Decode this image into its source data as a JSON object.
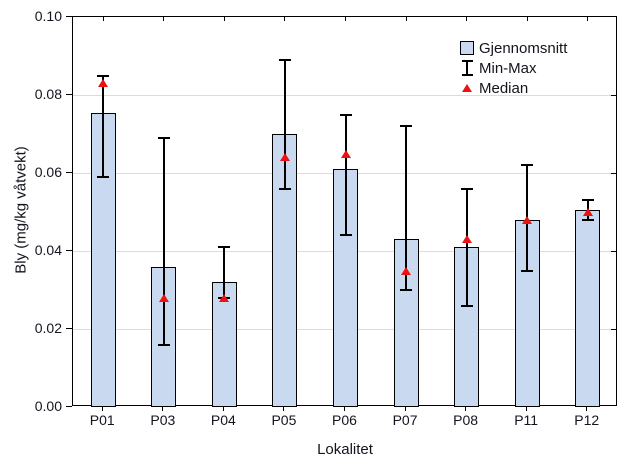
{
  "chart_data": {
    "type": "bar",
    "title": "",
    "xlabel": "Lokalitet",
    "ylabel": "Bly (mg/kg våtvekt)",
    "categories": [
      "P01",
      "P03",
      "P04",
      "P05",
      "P06",
      "P07",
      "P08",
      "P11",
      "P12"
    ],
    "series": [
      {
        "name": "Gjennomsnitt",
        "type": "bar",
        "values": [
          0.0755,
          0.036,
          0.032,
          0.07,
          0.061,
          0.043,
          0.041,
          0.048,
          0.0505
        ]
      },
      {
        "name": "Min-Max",
        "type": "range",
        "min": [
          0.059,
          0.016,
          0.028,
          0.056,
          0.044,
          0.03,
          0.026,
          0.035,
          0.048
        ],
        "max": [
          0.085,
          0.069,
          0.041,
          0.089,
          0.075,
          0.072,
          0.056,
          0.062,
          0.053
        ]
      },
      {
        "name": "Median",
        "type": "point",
        "values": [
          0.083,
          0.028,
          0.028,
          0.064,
          0.065,
          0.035,
          0.043,
          0.048,
          0.05
        ]
      }
    ],
    "ylim": [
      0,
      0.1
    ],
    "ytick_step": 0.02,
    "ytick_labels": [
      "0.00",
      "0.02",
      "0.04",
      "0.06",
      "0.08",
      "0.10"
    ],
    "grid": "horizontal",
    "legend_position": "top-right",
    "colors": {
      "bar_fill": "#c9daf0",
      "bar_border": "#000000",
      "error_bar": "#000000",
      "median_marker": "#ee1111",
      "gridline": "#dcdcdc",
      "text": "#14141e",
      "background": "#ffffff"
    }
  },
  "legend": {
    "items": [
      {
        "label": "Gjennomsnitt",
        "marker": "bar-swatch"
      },
      {
        "label": "Min-Max",
        "marker": "error-bar-symbol"
      },
      {
        "label": "Median",
        "marker": "red-triangle"
      }
    ]
  }
}
